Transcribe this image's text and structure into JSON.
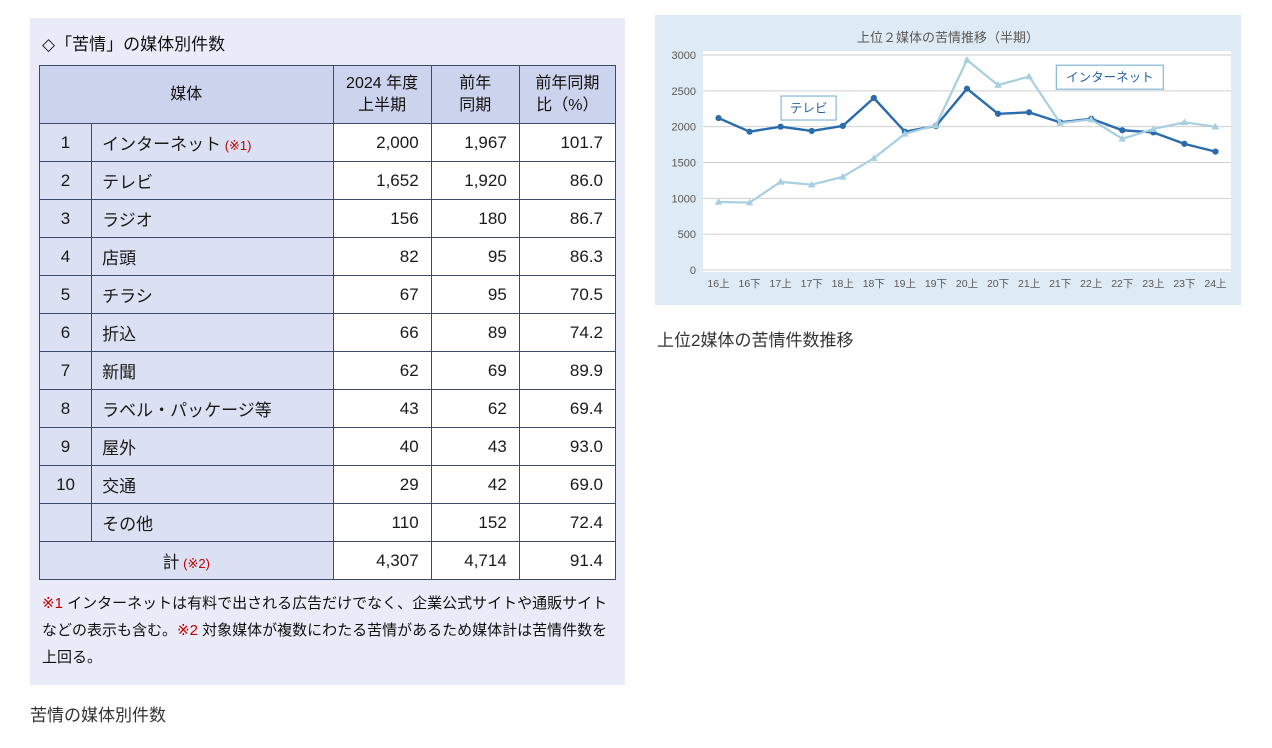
{
  "captions": {
    "left_caption": "苦情の媒体別件数",
    "right_caption": "上位2媒体の苦情件数推移"
  },
  "left_panel": {
    "title": "◇「苦情」の媒体別件数",
    "table": {
      "headers": {
        "media": "媒体",
        "current": [
          "2024 年度",
          "上半期"
        ],
        "prev": [
          "前年",
          "同期"
        ],
        "ratio": [
          "前年同期",
          "比（%）"
        ]
      },
      "rows": [
        {
          "rank": "1",
          "media": "インターネット",
          "note": "(※1)",
          "current": "2,000",
          "prev": "1,967",
          "ratio": "101.7"
        },
        {
          "rank": "2",
          "media": "テレビ",
          "note": "",
          "current": "1,652",
          "prev": "1,920",
          "ratio": "86.0"
        },
        {
          "rank": "3",
          "media": "ラジオ",
          "note": "",
          "current": "156",
          "prev": "180",
          "ratio": "86.7"
        },
        {
          "rank": "4",
          "media": "店頭",
          "note": "",
          "current": "82",
          "prev": "95",
          "ratio": "86.3"
        },
        {
          "rank": "5",
          "media": "チラシ",
          "note": "",
          "current": "67",
          "prev": "95",
          "ratio": "70.5"
        },
        {
          "rank": "6",
          "media": "折込",
          "note": "",
          "current": "66",
          "prev": "89",
          "ratio": "74.2"
        },
        {
          "rank": "7",
          "media": "新聞",
          "note": "",
          "current": "62",
          "prev": "69",
          "ratio": "89.9"
        },
        {
          "rank": "8",
          "media": "ラベル・パッケージ等",
          "note": "",
          "current": "43",
          "prev": "62",
          "ratio": "69.4"
        },
        {
          "rank": "9",
          "media": "屋外",
          "note": "",
          "current": "40",
          "prev": "43",
          "ratio": "93.0"
        },
        {
          "rank": "10",
          "media": "交通",
          "note": "",
          "current": "29",
          "prev": "42",
          "ratio": "69.0"
        },
        {
          "rank": "",
          "media": "その他",
          "note": "",
          "current": "110",
          "prev": "152",
          "ratio": "72.4"
        }
      ],
      "total_row": {
        "label": "計",
        "note": "(※2)",
        "current": "4,307",
        "prev": "4,714",
        "ratio": "91.4"
      }
    },
    "footnote": {
      "segments": [
        {
          "text": "※1",
          "red": true
        },
        {
          "text": " インターネットは有料で出される広告だけでなく、企業公式サイトや通販サイトなどの表示も含む。",
          "red": false
        },
        {
          "text": "※2",
          "red": true
        },
        {
          "text": " 対象媒体が複数にわたる苦情があるため媒体計は苦情件数を上回る。",
          "red": false
        }
      ]
    }
  },
  "chart_data": {
    "type": "line",
    "title": "上位２媒体の苦情推移（半期）",
    "x": [
      "16上",
      "16下",
      "17上",
      "17下",
      "18上",
      "18下",
      "19上",
      "19下",
      "20上",
      "20下",
      "21上",
      "21下",
      "22上",
      "22下",
      "23上",
      "23下",
      "24上"
    ],
    "series": [
      {
        "key": "tv",
        "name": "テレビ",
        "color": "#2a6bad",
        "marker": "circle",
        "values": [
          2120,
          1930,
          2000,
          1940,
          2010,
          2400,
          1930,
          2010,
          2530,
          2180,
          2200,
          2060,
          2110,
          1950,
          1920,
          1760,
          1652
        ]
      },
      {
        "key": "internet",
        "name": "インターネット",
        "color": "#a8cfe0",
        "marker": "triangle",
        "values": [
          950,
          940,
          1230,
          1190,
          1300,
          1560,
          1900,
          2020,
          2930,
          2580,
          2700,
          2050,
          2100,
          1830,
          1967,
          2060,
          2000
        ]
      }
    ],
    "ylim": [
      0,
      3000
    ],
    "yticks": [
      0,
      500,
      1000,
      1500,
      2000,
      2500,
      3000
    ],
    "grid": true,
    "legend_position": "inline-labels",
    "annotations": [
      {
        "key": "tv",
        "text": "テレビ",
        "x_index": 2.9,
        "y": 2260
      },
      {
        "key": "internet",
        "text": "インターネット",
        "x_index": 12.6,
        "y": 2690
      }
    ],
    "colors": {
      "panel_bg": "#deeaf4",
      "plot_bg": "#ffffff",
      "gridline": "#cfcfcf",
      "tick_text": "#595959",
      "label_box_border": "#8fbcd9",
      "label_text": "#2563a8"
    }
  }
}
